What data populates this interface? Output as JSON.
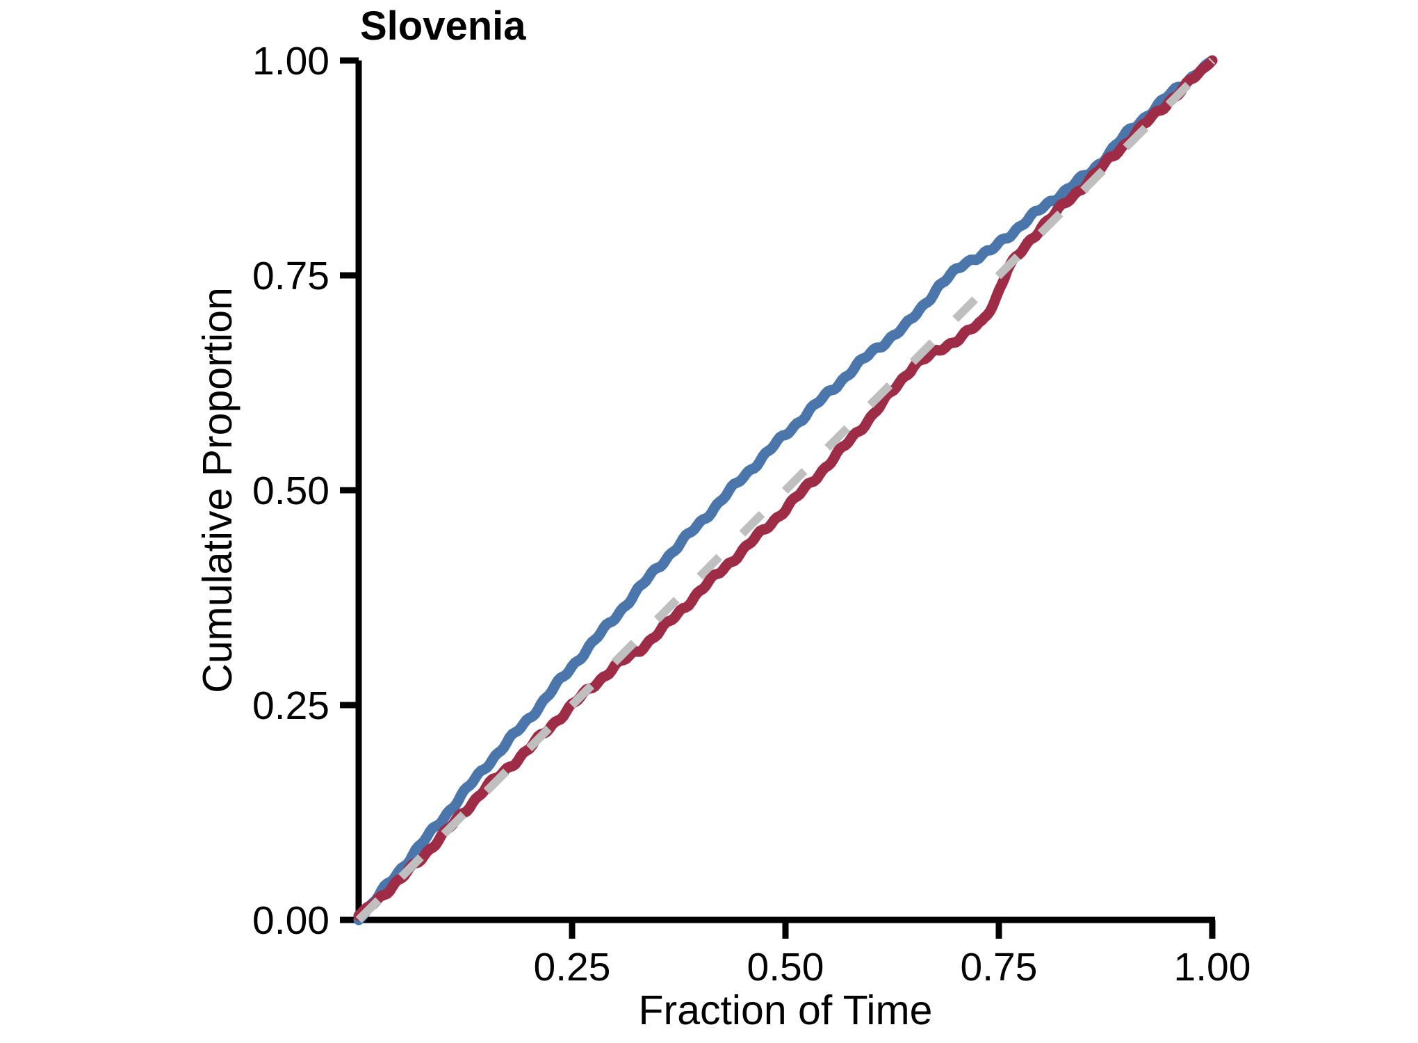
{
  "chart_data": {
    "type": "line",
    "title": "Slovenia",
    "xlabel": "Fraction of Time",
    "ylabel": "Cumulative Proportion",
    "xlim": [
      0,
      1
    ],
    "ylim": [
      0,
      1
    ],
    "grid": false,
    "legend": "none",
    "x_ticks": [
      0.25,
      0.5,
      0.75,
      1.0
    ],
    "x_tick_labels": [
      "0.25",
      "0.50",
      "0.75",
      "1.00"
    ],
    "y_ticks": [
      0.0,
      0.25,
      0.5,
      0.75,
      1.0
    ],
    "y_tick_labels": [
      "0.00",
      "0.25",
      "0.50",
      "0.75",
      "1.00"
    ],
    "reference_line": {
      "name": "diagonal-identity-line",
      "style": "dashed",
      "color": "#BFBFBF",
      "points": [
        [
          0,
          0
        ],
        [
          1,
          1
        ]
      ]
    },
    "series": [
      {
        "name": "upper-cdf",
        "color": "#4A76AB",
        "x": [
          0,
          0.05,
          0.1,
          0.15,
          0.2,
          0.25,
          0.3,
          0.35,
          0.4,
          0.45,
          0.5,
          0.55,
          0.6,
          0.64,
          0.68,
          0.71,
          0.74,
          0.78,
          0.82,
          0.86,
          0.9,
          0.95,
          1.0
        ],
        "y": [
          0,
          0.06,
          0.12,
          0.18,
          0.235,
          0.295,
          0.352,
          0.41,
          0.462,
          0.515,
          0.565,
          0.613,
          0.66,
          0.69,
          0.737,
          0.765,
          0.778,
          0.812,
          0.843,
          0.872,
          0.915,
          0.96,
          1.0
        ]
      },
      {
        "name": "lower-cdf",
        "color": "#9E2C46",
        "x": [
          0,
          0.05,
          0.1,
          0.15,
          0.17,
          0.2,
          0.25,
          0.3,
          0.33,
          0.37,
          0.4,
          0.45,
          0.5,
          0.55,
          0.6,
          0.65,
          0.7,
          0.73,
          0.745,
          0.76,
          0.8,
          0.84,
          0.88,
          0.92,
          0.96,
          1.0
        ],
        "y": [
          0.005,
          0.048,
          0.1,
          0.155,
          0.172,
          0.2,
          0.25,
          0.295,
          0.315,
          0.352,
          0.383,
          0.43,
          0.478,
          0.53,
          0.585,
          0.645,
          0.675,
          0.695,
          0.72,
          0.757,
          0.807,
          0.845,
          0.885,
          0.925,
          0.962,
          1.0
        ]
      }
    ]
  }
}
